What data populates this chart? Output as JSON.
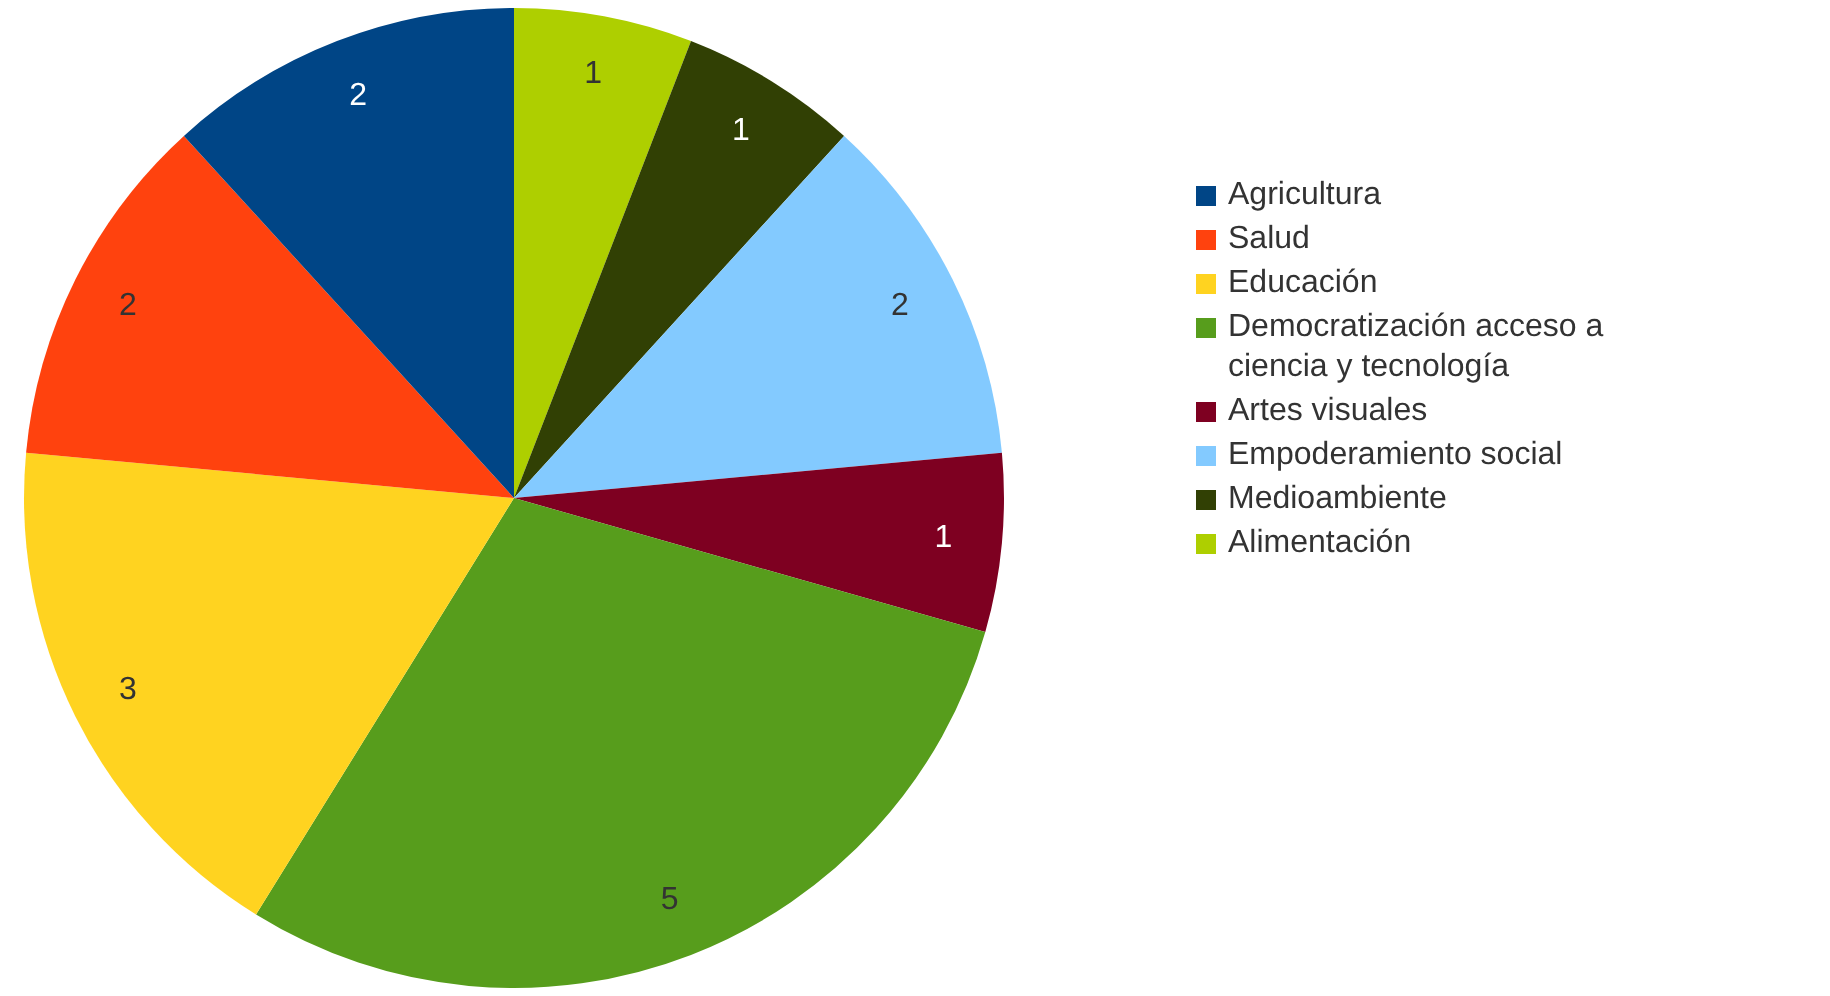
{
  "chart_data": {
    "type": "pie",
    "categories": [
      "Agricultura",
      "Salud",
      "Educación",
      "Democratización acceso a ciencia y tecnología",
      "Artes visuales",
      "Empoderamiento social",
      "Medioambiente",
      "Alimentación"
    ],
    "values": [
      2,
      2,
      3,
      5,
      1,
      2,
      1,
      1
    ],
    "colors": [
      "#004586",
      "#ff420e",
      "#ffd320",
      "#579d1c",
      "#7e0021",
      "#83caff",
      "#314004",
      "#aecf00"
    ],
    "data_labels": true,
    "legend": "right"
  }
}
